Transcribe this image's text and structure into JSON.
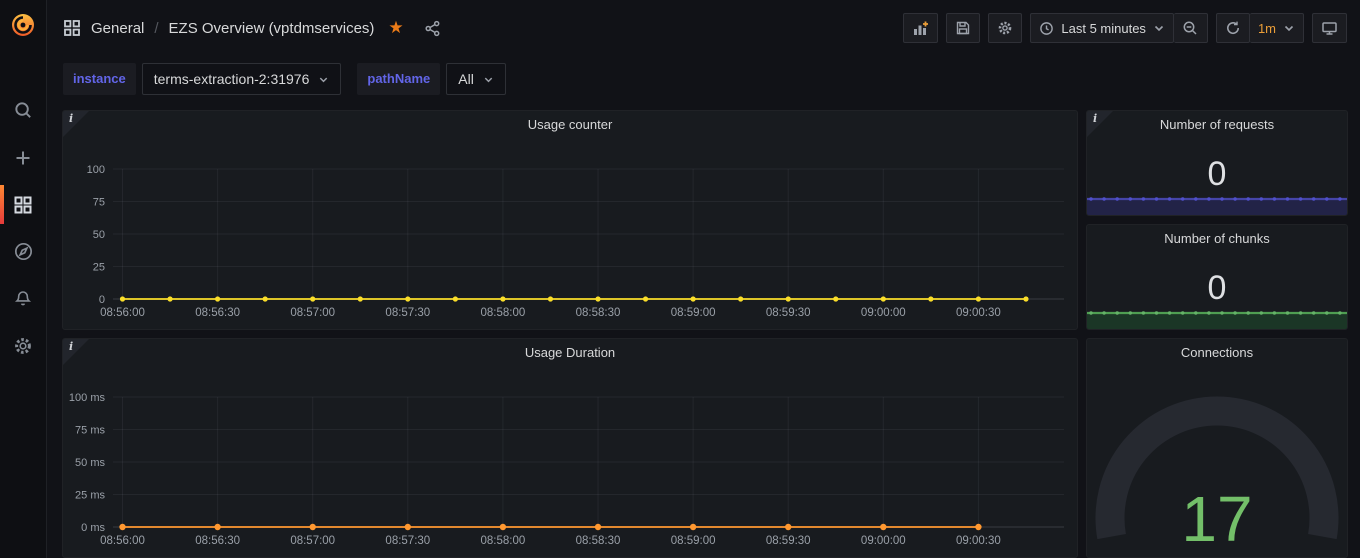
{
  "header": {
    "breadcrumb": {
      "section": "General",
      "separator": "/",
      "title": "EZS Overview (vptdmservices)"
    },
    "toolbar": {
      "time_range": "Last 5 minutes",
      "refresh_interval": "1m"
    }
  },
  "filters": [
    {
      "label": "instance",
      "value": "terms-extraction-2:31976"
    },
    {
      "label": "pathName",
      "value": "All"
    }
  ],
  "sidebar": {
    "items": [
      "search",
      "create",
      "dashboards",
      "explore",
      "alerting",
      "configuration"
    ],
    "active_item": "dashboards"
  },
  "colors": {
    "accent_orange": "#eb7b18",
    "yellow_series": "#fade2a",
    "orange_series": "#ff9830",
    "green_value": "#73bf69"
  },
  "chart_data": [
    {
      "type": "line",
      "title": "Usage counter",
      "ylim": [
        0,
        100
      ],
      "y_ticks": [
        0,
        25,
        50,
        75,
        100
      ],
      "unit": "",
      "x_domain": [
        "08:55:57",
        "09:00:57"
      ],
      "x_ticks": [
        "08:56:00",
        "08:56:30",
        "08:57:00",
        "08:57:30",
        "08:58:00",
        "08:58:30",
        "08:59:00",
        "08:59:30",
        "09:00:00",
        "09:00:30"
      ],
      "grid": true,
      "legend": "none",
      "series": [
        {
          "name": "usage counter",
          "color": "#fade2a",
          "point_radius": 2.6,
          "x": [
            "08:56:00",
            "08:56:15",
            "08:56:30",
            "08:56:45",
            "08:57:00",
            "08:57:15",
            "08:57:30",
            "08:57:45",
            "08:58:00",
            "08:58:15",
            "08:58:30",
            "08:58:45",
            "08:59:00",
            "08:59:15",
            "08:59:30",
            "08:59:45",
            "09:00:00",
            "09:00:15",
            "09:00:30",
            "09:00:45"
          ],
          "values": [
            0,
            0,
            0,
            0,
            0,
            0,
            0,
            0,
            0,
            0,
            0,
            0,
            0,
            0,
            0,
            0,
            0,
            0,
            0,
            0
          ]
        }
      ]
    },
    {
      "type": "line",
      "title": "Usage Duration",
      "ylim": [
        0,
        100
      ],
      "y_ticks": [
        0,
        25,
        50,
        75,
        100
      ],
      "unit": " ms",
      "x_domain": [
        "08:55:57",
        "09:00:57"
      ],
      "x_ticks": [
        "08:56:00",
        "08:56:30",
        "08:57:00",
        "08:57:30",
        "08:58:00",
        "08:58:30",
        "08:59:00",
        "08:59:30",
        "09:00:00",
        "09:00:30"
      ],
      "grid": true,
      "legend": "none",
      "series": [
        {
          "name": "usage duration",
          "color": "#ff9830",
          "point_radius": 3.2,
          "x": [
            "08:56:00",
            "08:56:30",
            "08:57:00",
            "08:57:30",
            "08:58:00",
            "08:58:30",
            "08:59:00",
            "08:59:30",
            "09:00:00",
            "09:00:30"
          ],
          "values": [
            0,
            0,
            0,
            0,
            0,
            0,
            0,
            0,
            0,
            0
          ]
        }
      ]
    },
    {
      "type": "stat",
      "title": "Number of requests",
      "value": "0",
      "sparkline": {
        "line": "#4545a8",
        "dot": "#5050cc",
        "fill": "#222347"
      }
    },
    {
      "type": "stat",
      "title": "Number of chunks",
      "value": "0",
      "sparkline": {
        "line": "#4f9e52",
        "dot": "#65b368",
        "fill": "#1b3626"
      }
    },
    {
      "type": "gauge",
      "title": "Connections",
      "value": "17",
      "value_color": "#73bf69",
      "ring_color": "#262930",
      "min": 0,
      "max": 100
    }
  ]
}
